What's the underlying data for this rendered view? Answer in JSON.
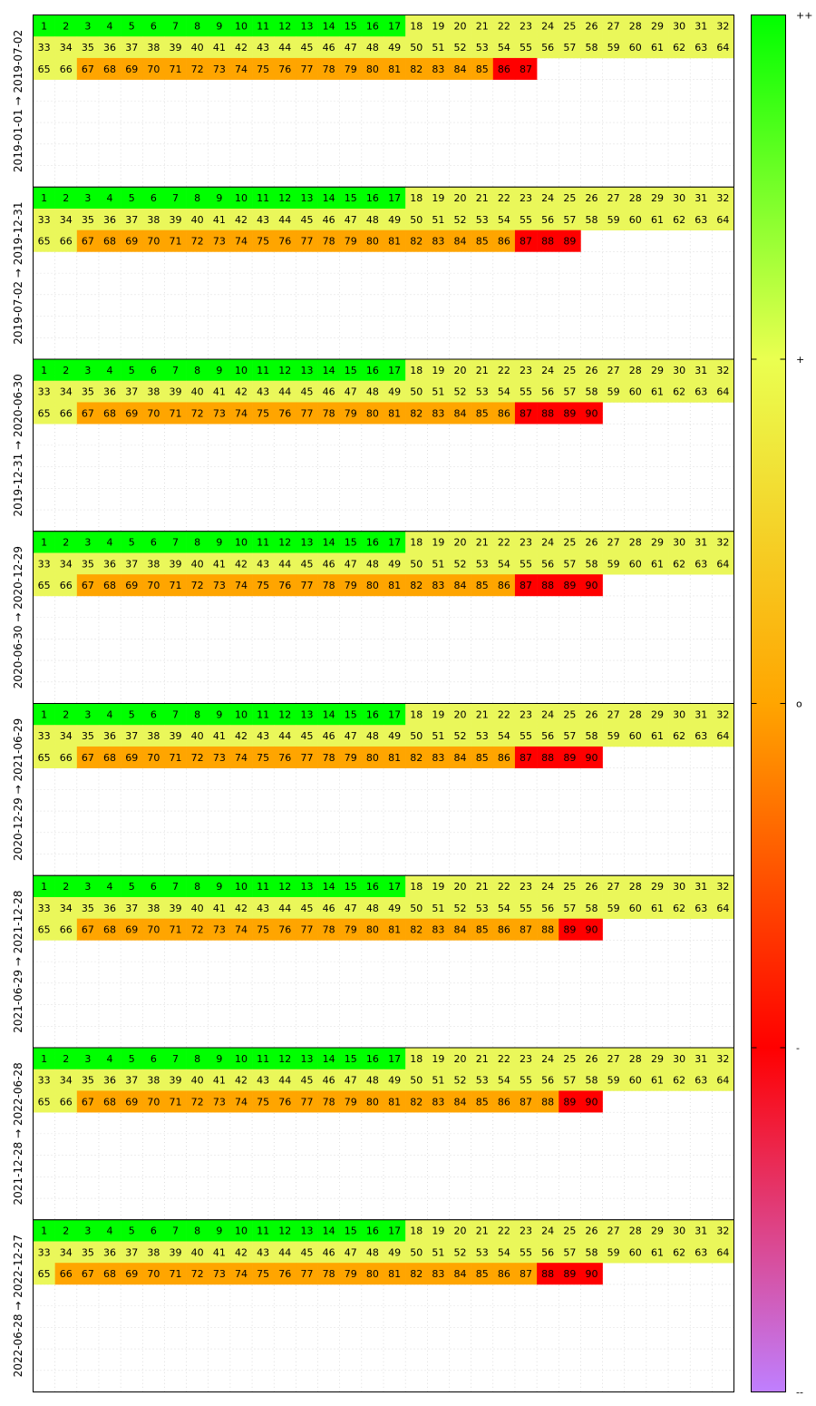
{
  "chart_data": {
    "type": "heatmap",
    "title": "",
    "xlabel": "",
    "ylabel": "",
    "grid": true,
    "columns_per_row": 32,
    "rows_per_panel": 8,
    "colormap": {
      "stops": [
        {
          "pos": 0.0,
          "color": "#bf7fff"
        },
        {
          "pos": 0.25,
          "color": "#ff0000"
        },
        {
          "pos": 0.5,
          "color": "#ffa500"
        },
        {
          "pos": 0.75,
          "color": "#eaff50"
        },
        {
          "pos": 1.0,
          "color": "#00ff00"
        }
      ],
      "ticks": [
        "--",
        "-",
        "o",
        "+",
        "++"
      ],
      "legend_placement": "right"
    },
    "category_colors": {
      "++": "#00ff00",
      "+": "#eaf75a",
      "o": "#ffa500",
      "-": "#ff0000"
    },
    "panels": [
      {
        "label": "2019-01-01 → 2019-07-02",
        "count": 87,
        "segments": [
          {
            "to": 17,
            "level": "++"
          },
          {
            "to": 66,
            "level": "+"
          },
          {
            "to": 85,
            "level": "o"
          },
          {
            "to": 87,
            "level": "-"
          }
        ]
      },
      {
        "label": "2019-07-02 → 2019-12-31",
        "count": 89,
        "segments": [
          {
            "to": 17,
            "level": "++"
          },
          {
            "to": 66,
            "level": "+"
          },
          {
            "to": 86,
            "level": "o"
          },
          {
            "to": 89,
            "level": "-"
          }
        ]
      },
      {
        "label": "2019-12-31 → 2020-06-30",
        "count": 90,
        "segments": [
          {
            "to": 17,
            "level": "++"
          },
          {
            "to": 66,
            "level": "+"
          },
          {
            "to": 86,
            "level": "o"
          },
          {
            "to": 90,
            "level": "-"
          }
        ]
      },
      {
        "label": "2020-06-30 → 2020-12-29",
        "count": 90,
        "segments": [
          {
            "to": 17,
            "level": "++"
          },
          {
            "to": 66,
            "level": "+"
          },
          {
            "to": 86,
            "level": "o"
          },
          {
            "to": 90,
            "level": "-"
          }
        ]
      },
      {
        "label": "2020-12-29 → 2021-06-29",
        "count": 90,
        "segments": [
          {
            "to": 17,
            "level": "++"
          },
          {
            "to": 66,
            "level": "+"
          },
          {
            "to": 86,
            "level": "o"
          },
          {
            "to": 90,
            "level": "-"
          }
        ]
      },
      {
        "label": "2021-06-29 → 2021-12-28",
        "count": 90,
        "segments": [
          {
            "to": 17,
            "level": "++"
          },
          {
            "to": 66,
            "level": "+"
          },
          {
            "to": 88,
            "level": "o"
          },
          {
            "to": 90,
            "level": "-"
          }
        ]
      },
      {
        "label": "2021-12-28 → 2022-06-28",
        "count": 90,
        "segments": [
          {
            "to": 17,
            "level": "++"
          },
          {
            "to": 66,
            "level": "+"
          },
          {
            "to": 88,
            "level": "o"
          },
          {
            "to": 90,
            "level": "-"
          }
        ]
      },
      {
        "label": "2022-06-28 → 2022-12-27",
        "count": 90,
        "segments": [
          {
            "to": 17,
            "level": "++"
          },
          {
            "to": 65,
            "level": "+"
          },
          {
            "to": 87,
            "level": "o"
          },
          {
            "to": 90,
            "level": "-"
          }
        ]
      }
    ]
  }
}
